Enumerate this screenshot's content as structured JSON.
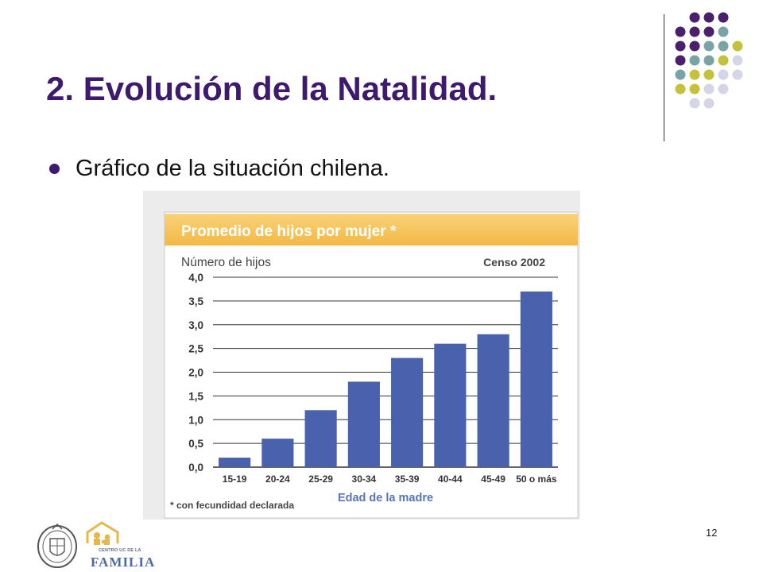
{
  "slide": {
    "title": "2. Evolución de la Natalidad.",
    "bullet": "Gráfico de la situación chilena.",
    "page_number": "12"
  },
  "logos": {
    "familia_small": "CENTRO UC DE LA",
    "familia_name": "FAMILIA"
  },
  "colors": {
    "title": "#3d1a6e",
    "bar": "#4a62ad",
    "header_band": "#f6c055",
    "dot_purple": "#4a1f6e",
    "dot_teal": "#7aa3a3",
    "dot_lime": "#c4c23a",
    "dot_lavender": "#d5d5e8"
  },
  "chart_data": {
    "type": "bar",
    "title": "Promedio de hijos por mujer *",
    "ylabel": "Número de hijos",
    "xlabel": "Edad de la madre",
    "source_label": "Censo 2002",
    "footnote": "* con fecundidad declarada",
    "categories": [
      "15-19",
      "20-24",
      "25-29",
      "30-34",
      "35-39",
      "40-44",
      "45-49",
      "50 o más"
    ],
    "values": [
      0.2,
      0.6,
      1.2,
      1.8,
      2.3,
      2.6,
      2.8,
      3.7
    ],
    "ylim": [
      0,
      4.0
    ],
    "yticks": [
      "0,0",
      "0,5",
      "1,0",
      "1,5",
      "2,0",
      "2,5",
      "3,0",
      "3,5",
      "4,0"
    ],
    "grid": true,
    "legend": "none"
  }
}
